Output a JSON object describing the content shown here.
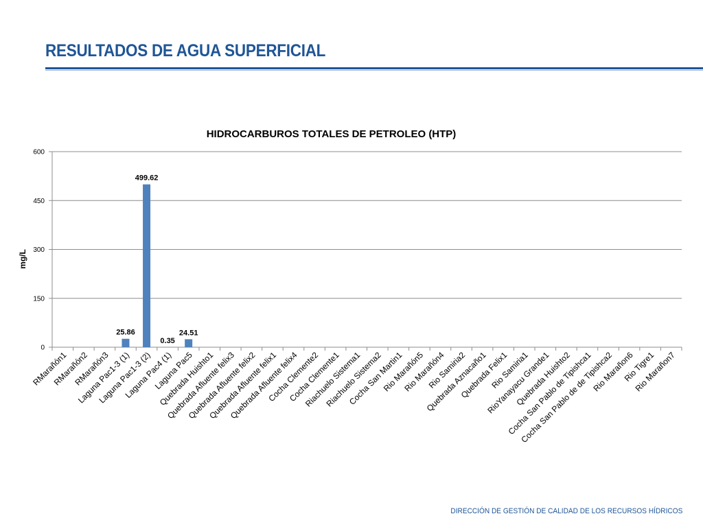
{
  "slide": {
    "title": "RESULTADOS DE AGUA SUPERFICIAL",
    "footer": "DIRECCIÓN DE GESTIÓN DE CALIDAD DE LOS RECURSOS HÍDRICOS",
    "accent_color": "#1f5596"
  },
  "chart_data": {
    "type": "bar",
    "title": "HIDROCARBUROS TOTALES DE PETROLEO (HTP)",
    "xlabel": "",
    "ylabel": "mg/L",
    "ylim": [
      0,
      600
    ],
    "yticks": [
      0,
      150,
      300,
      450,
      600
    ],
    "grid": true,
    "bar_color": "#4f81bd",
    "categories": [
      "RMarañón1",
      "RMarañón2",
      "RMarañón3",
      "Laguna Pac1-3 (1)",
      "Laguna Pac1-3 (2)",
      "Laguna Pac4 (1)",
      "Laguna Pac5",
      "Quebrada Huishto1",
      "Quebrada Afluente felix3",
      "Quebrada Afluente felix2",
      "Quebrada Afluente felix1",
      "Quebrada Afluente felix4",
      "Cocha Clemente2",
      "Cocha Clemente1",
      "Riachuelo Sistema1",
      "Riachuelo Sistema2",
      "Cocha San Martin1",
      "Rio Marañón5",
      "Rio Marañón4",
      "Rio Samiria2",
      "Quebrada Aznacaño1",
      "Quebrada Felix1",
      "Rio Samiria1",
      "RioYanayacu Grande1",
      "Quebrada Huishto2",
      "Cocha San Pablo de Tipishca1",
      "Cocha San Pablo de de Tipishca2",
      "Rio Marañon6",
      "Rio Tigre1",
      "Rio Marañon7"
    ],
    "values": [
      null,
      null,
      null,
      25.86,
      499.62,
      0.35,
      24.51,
      null,
      null,
      null,
      null,
      null,
      null,
      null,
      null,
      null,
      null,
      null,
      null,
      null,
      null,
      null,
      null,
      null,
      null,
      null,
      null,
      null,
      null,
      null
    ],
    "data_labels": [
      {
        "index": 3,
        "text": "25.86"
      },
      {
        "index": 4,
        "text": "499.62"
      },
      {
        "index": 5,
        "text": "0.35"
      },
      {
        "index": 6,
        "text": "24.51"
      }
    ]
  }
}
